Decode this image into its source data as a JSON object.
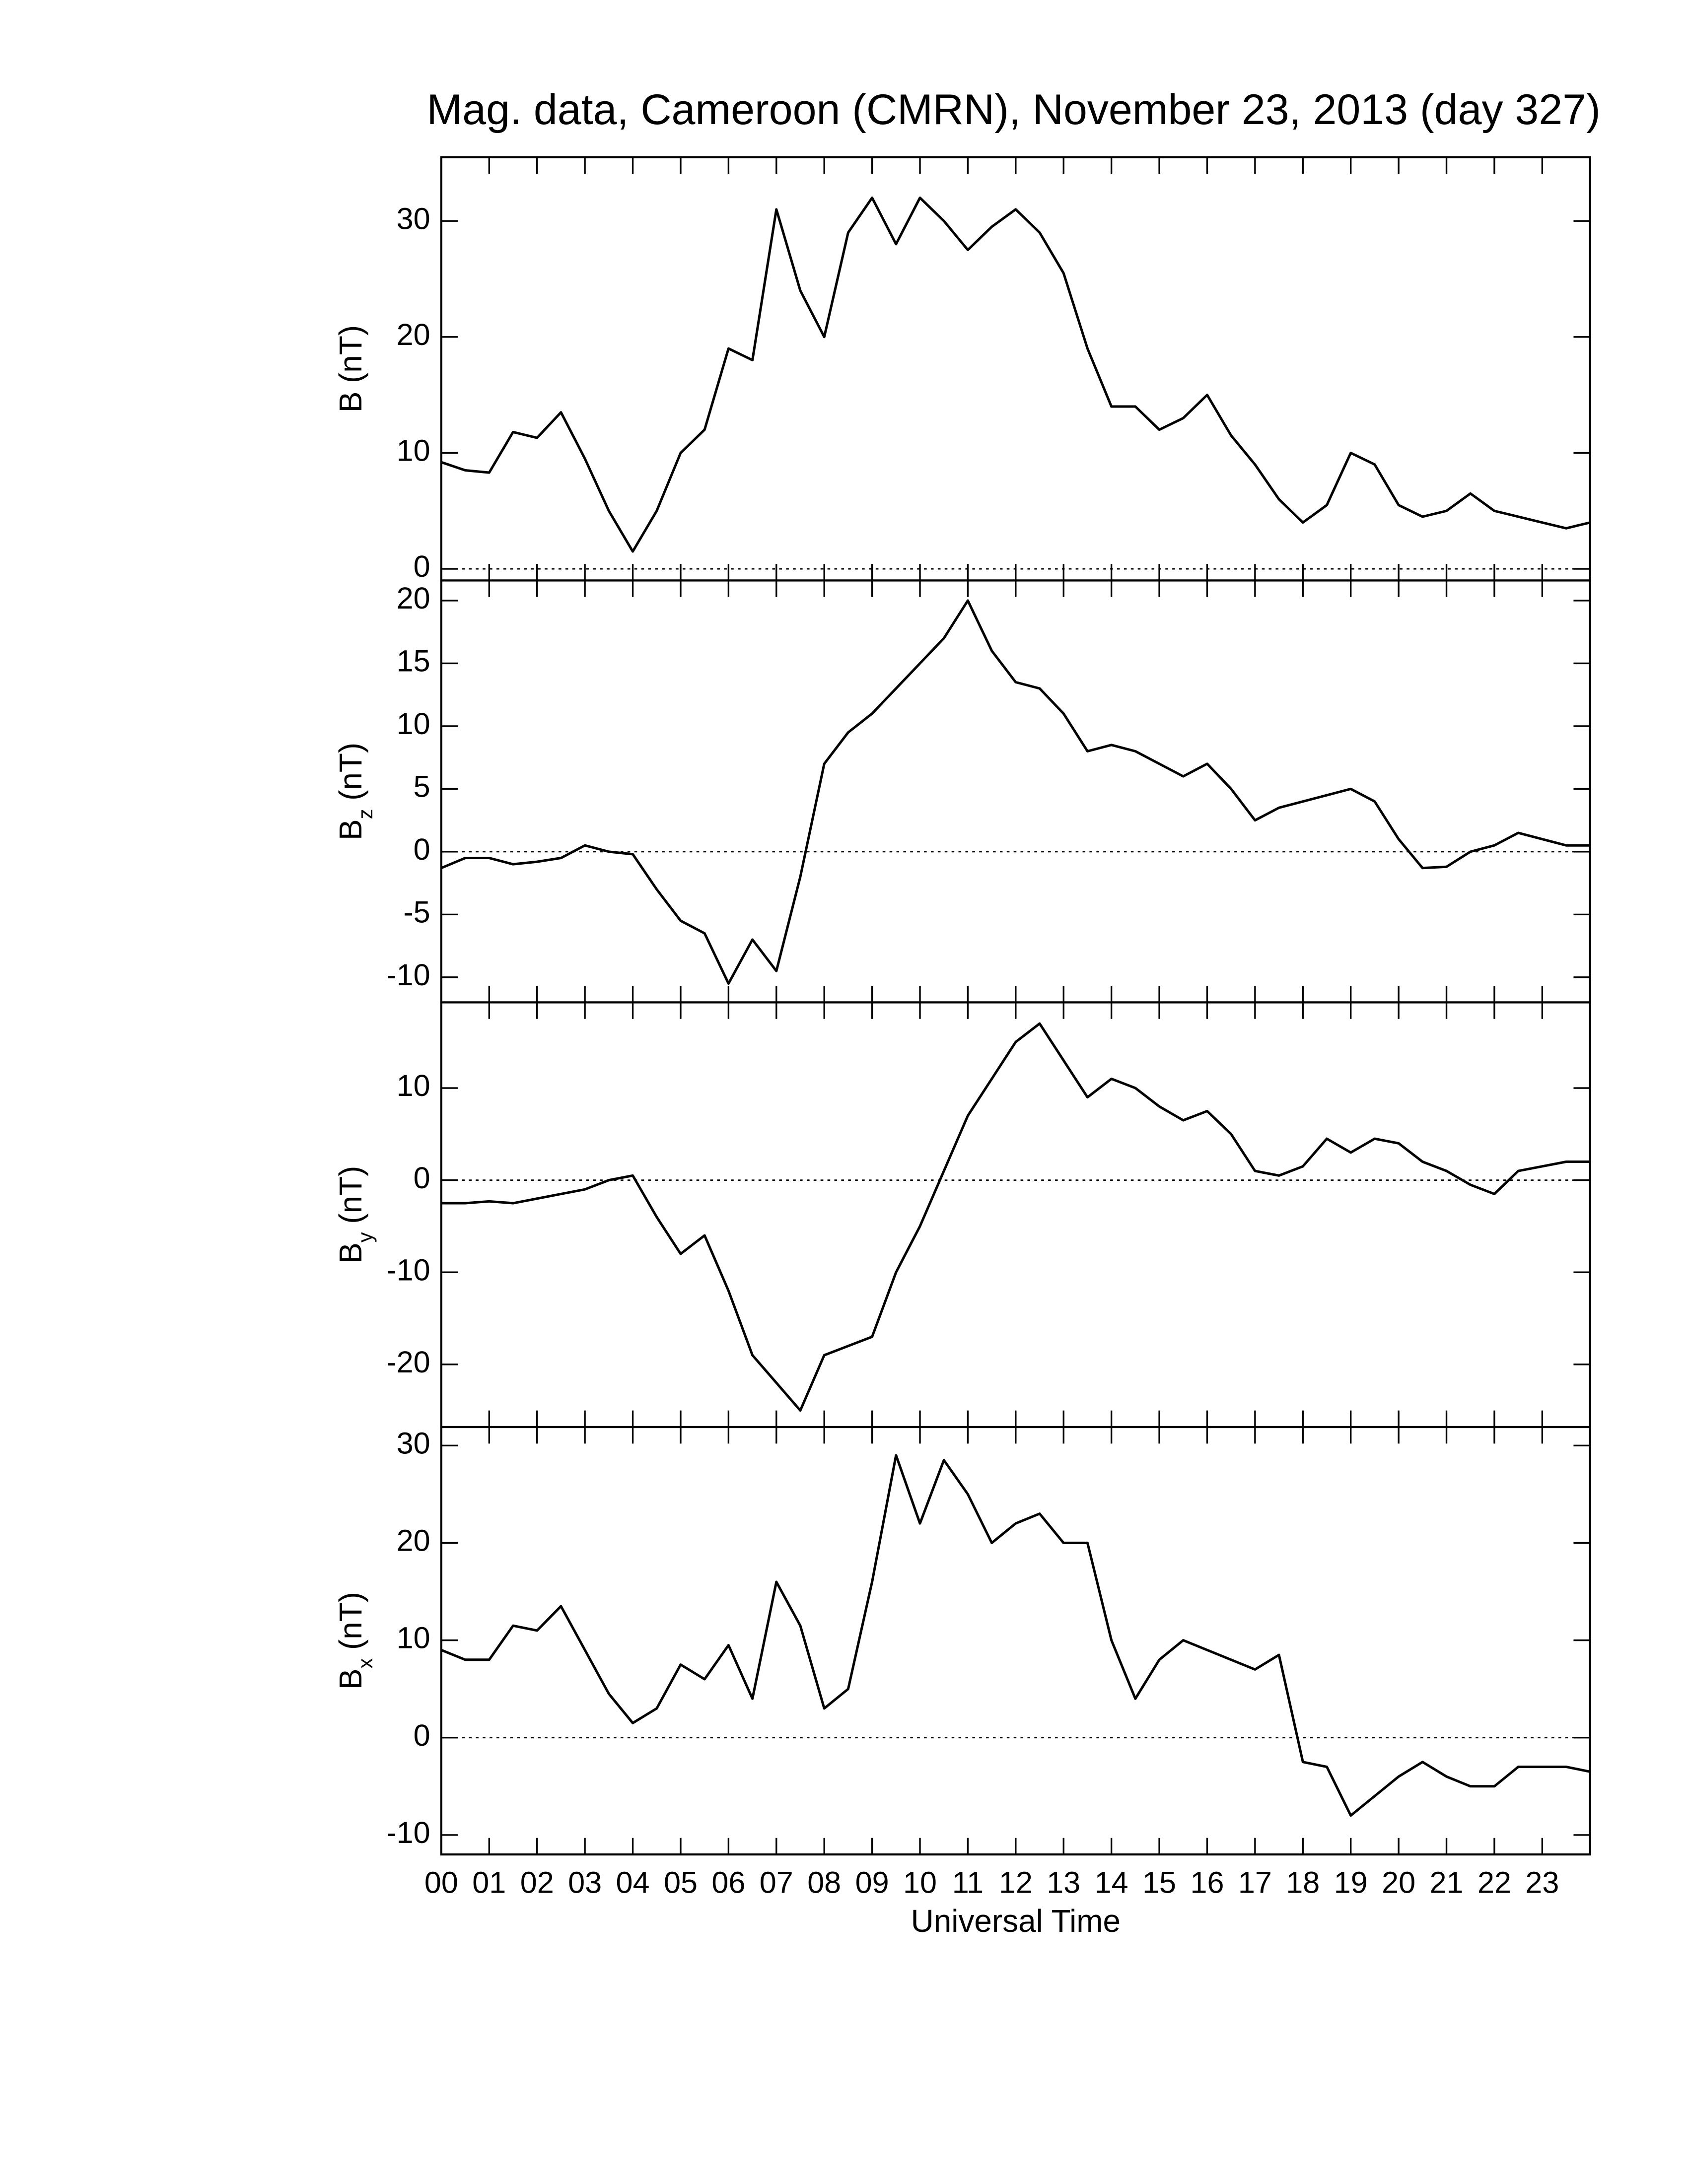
{
  "chart_data": [
    {
      "type": "line",
      "title": "Mag. data, Cameroon (CMRN), November 23, 2013 (day 327)",
      "ylabel": {
        "symbol": "B",
        "unit": "(nT)"
      },
      "x": [
        0,
        0.5,
        1,
        1.5,
        2,
        2.5,
        3,
        3.5,
        4,
        4.5,
        5,
        5.5,
        6,
        6.5,
        7,
        7.5,
        8,
        8.5,
        9,
        9.5,
        10,
        10.5,
        11,
        11.5,
        12,
        12.5,
        13,
        13.5,
        14,
        14.5,
        15,
        15.5,
        16,
        16.5,
        17,
        17.5,
        18,
        18.5,
        19,
        19.5,
        20,
        20.5,
        21,
        21.5,
        22,
        22.5,
        23,
        23.5,
        24
      ],
      "values": [
        9.2,
        8.5,
        8.3,
        11.8,
        11.3,
        13.5,
        9.5,
        5,
        1.5,
        5,
        10,
        12,
        19,
        18,
        31,
        24,
        20,
        29,
        32,
        28,
        32,
        30,
        27.5,
        29.5,
        31,
        29,
        25.5,
        19,
        14,
        14,
        12,
        13,
        15,
        11.5,
        9,
        6,
        4,
        5.5,
        10,
        9,
        5.5,
        4.5,
        5,
        6.5,
        5,
        4.5,
        4,
        3.5,
        4
      ],
      "color": "#000000",
      "xlim": [
        0,
        24
      ],
      "ylim": [
        -1,
        35.5
      ],
      "yticks": [
        0,
        10,
        20,
        30
      ],
      "zero_line": true
    },
    {
      "type": "line",
      "ylabel": {
        "symbol": "B",
        "subscript": "z",
        "unit": "(nT)"
      },
      "x": [
        0,
        0.5,
        1,
        1.5,
        2,
        2.5,
        3,
        3.5,
        4,
        4.5,
        5,
        5.5,
        6,
        6.5,
        7,
        7.5,
        8,
        8.5,
        9,
        9.5,
        10,
        10.5,
        11,
        11.5,
        12,
        12.5,
        13,
        13.5,
        14,
        14.5,
        15,
        15.5,
        16,
        16.5,
        17,
        17.5,
        18,
        18.5,
        19,
        19.5,
        20,
        20.5,
        21,
        21.5,
        22,
        22.5,
        23,
        23.5,
        24
      ],
      "values": [
        -1.3,
        -0.5,
        -0.5,
        -1,
        -0.8,
        -0.5,
        0.5,
        0,
        -0.2,
        -3,
        -5.5,
        -6.5,
        -10.5,
        -7,
        -9.5,
        -2,
        7,
        9.5,
        11,
        13,
        15,
        17,
        20,
        16,
        13.5,
        13,
        11,
        8,
        8.5,
        8,
        7,
        6,
        7,
        5,
        2.5,
        3.5,
        4,
        4.5,
        5,
        4,
        1,
        -1.3,
        -1.2,
        0,
        0.5,
        1.5,
        1,
        0.5,
        0.5
      ],
      "color": "#000000",
      "xlim": [
        0,
        24
      ],
      "ylim": [
        -12,
        21.6
      ],
      "yticks": [
        -10,
        -5,
        0,
        5,
        10,
        15,
        20
      ],
      "zero_line": true
    },
    {
      "type": "line",
      "ylabel": {
        "symbol": "B",
        "subscript": "y",
        "unit": "(nT)"
      },
      "x": [
        0,
        0.5,
        1,
        1.5,
        2,
        2.5,
        3,
        3.5,
        4,
        4.5,
        5,
        5.5,
        6,
        6.5,
        7,
        7.5,
        8,
        8.5,
        9,
        9.5,
        10,
        10.5,
        11,
        11.5,
        12,
        12.5,
        13,
        13.5,
        14,
        14.5,
        15,
        15.5,
        16,
        16.5,
        17,
        17.5,
        18,
        18.5,
        19,
        19.5,
        20,
        20.5,
        21,
        21.5,
        22,
        22.5,
        23,
        23.5,
        24
      ],
      "values": [
        -2.5,
        -2.5,
        -2.3,
        -2.5,
        -2,
        -1.5,
        -1,
        0,
        0.5,
        -4,
        -8,
        -6,
        -12,
        -19,
        -22,
        -25,
        -19,
        -18,
        -17,
        -10,
        -5,
        1,
        7,
        11,
        15,
        17,
        13,
        9,
        11,
        10,
        8,
        6.5,
        7.5,
        5,
        1,
        0.5,
        1.5,
        4.5,
        3,
        4.5,
        4,
        2,
        1,
        -0.5,
        -1.5,
        1,
        1.5,
        2,
        2
      ],
      "color": "#000000",
      "xlim": [
        0,
        24
      ],
      "ylim": [
        -26.8,
        19.3
      ],
      "yticks": [
        -20,
        -10,
        0,
        10
      ],
      "zero_line": true
    },
    {
      "type": "line",
      "ylabel": {
        "symbol": "B",
        "subscript": "x",
        "unit": "(nT)"
      },
      "xlabel": "Universal Time",
      "x": [
        0,
        0.5,
        1,
        1.5,
        2,
        2.5,
        3,
        3.5,
        4,
        4.5,
        5,
        5.5,
        6,
        6.5,
        7,
        7.5,
        8,
        8.5,
        9,
        9.5,
        10,
        10.5,
        11,
        11.5,
        12,
        12.5,
        13,
        13.5,
        14,
        14.5,
        15,
        15.5,
        16,
        16.5,
        17,
        17.5,
        18,
        18.5,
        19,
        19.5,
        20,
        20.5,
        21,
        21.5,
        22,
        22.5,
        23,
        23.5,
        24
      ],
      "values": [
        9,
        8,
        8,
        11.5,
        11,
        13.5,
        9,
        4.5,
        1.5,
        3,
        7.5,
        6,
        9.5,
        4,
        16,
        11.5,
        3,
        5,
        16,
        29,
        22,
        28.5,
        25,
        20,
        22,
        23,
        20,
        20,
        10,
        4,
        8,
        10,
        9,
        8,
        7,
        8.5,
        -2.5,
        -3,
        -8,
        -6,
        -4,
        -2.5,
        -4,
        -5,
        -5,
        -3,
        -3,
        -3,
        -3.5
      ],
      "color": "#000000",
      "xlim": [
        0,
        24
      ],
      "ylim": [
        -12,
        31.9
      ],
      "yticks": [
        -10,
        0,
        10,
        20,
        30
      ],
      "zero_line": true,
      "xticks": [
        {
          "value": 0,
          "label": "00"
        },
        {
          "value": 1,
          "label": "01"
        },
        {
          "value": 2,
          "label": "02"
        },
        {
          "value": 3,
          "label": "03"
        },
        {
          "value": 4,
          "label": "04"
        },
        {
          "value": 5,
          "label": "05"
        },
        {
          "value": 6,
          "label": "06"
        },
        {
          "value": 7,
          "label": "07"
        },
        {
          "value": 8,
          "label": "08"
        },
        {
          "value": 9,
          "label": "09"
        },
        {
          "value": 10,
          "label": "10"
        },
        {
          "value": 11,
          "label": "11"
        },
        {
          "value": 12,
          "label": "12"
        },
        {
          "value": 13,
          "label": "13"
        },
        {
          "value": 14,
          "label": "14"
        },
        {
          "value": 15,
          "label": "15"
        },
        {
          "value": 16,
          "label": "16"
        },
        {
          "value": 17,
          "label": "17"
        },
        {
          "value": 18,
          "label": "18"
        },
        {
          "value": 19,
          "label": "19"
        },
        {
          "value": 20,
          "label": "20"
        },
        {
          "value": 21,
          "label": "21"
        },
        {
          "value": 22,
          "label": "22"
        },
        {
          "value": 23,
          "label": "23"
        }
      ]
    }
  ]
}
